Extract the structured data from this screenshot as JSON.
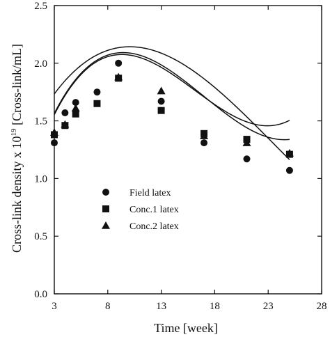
{
  "chart_data": {
    "type": "scatter",
    "xlabel": "Time [week]",
    "ylabel": {
      "prefix": "Cross-link density x 10",
      "exponent": "19",
      "suffix": " [Cross-link/mL]"
    },
    "xlim": [
      3,
      28
    ],
    "ylim": [
      0.0,
      2.5
    ],
    "x_ticks": [
      3,
      8,
      13,
      18,
      23,
      28
    ],
    "y_ticks": [
      0.0,
      0.5,
      1.0,
      1.5,
      2.0,
      2.5
    ],
    "y_tick_labels": [
      "0.0",
      "0.5",
      "1.0",
      "1.5",
      "2.0",
      "2.5"
    ],
    "grid": false,
    "legend_position": "center-left",
    "series": [
      {
        "name": "Field latex",
        "marker": "circle",
        "points": [
          [
            3,
            1.31
          ],
          [
            4,
            1.57
          ],
          [
            5,
            1.66
          ],
          [
            7,
            1.75
          ],
          [
            9,
            2.0
          ],
          [
            13,
            1.67
          ],
          [
            17,
            1.31
          ],
          [
            21,
            1.17
          ],
          [
            25,
            1.07
          ]
        ],
        "fit": [
          1.26,
          0.193,
          -0.0122,
          0.000173
        ]
      },
      {
        "name": "Conc.1 latex",
        "marker": "square",
        "points": [
          [
            3,
            1.38
          ],
          [
            4,
            1.46
          ],
          [
            5,
            1.56
          ],
          [
            7,
            1.65
          ],
          [
            9,
            1.87
          ],
          [
            13,
            1.59
          ],
          [
            17,
            1.39
          ],
          [
            21,
            1.34
          ],
          [
            25,
            1.21
          ]
        ],
        "fit": [
          0.811,
          0.314,
          -0.0237,
          0.00049
        ]
      },
      {
        "name": "Conc.2 latex",
        "marker": "triangle",
        "points": [
          [
            3,
            1.4
          ],
          [
            4,
            1.47
          ],
          [
            5,
            1.61
          ],
          [
            9,
            1.88
          ],
          [
            13,
            1.76
          ],
          [
            17,
            1.37
          ],
          [
            21,
            1.31
          ],
          [
            25,
            1.22
          ]
        ],
        "fit": [
          0.839,
          0.305,
          -0.0224,
          0.00044
        ]
      }
    ]
  }
}
